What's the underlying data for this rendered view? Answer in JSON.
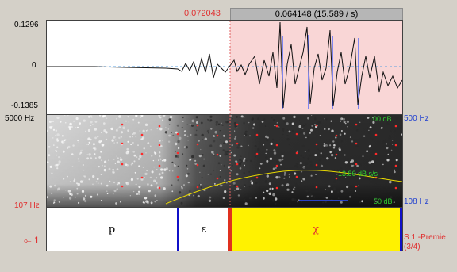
{
  "cursor_time": "0.072043",
  "selection_label": "0.064148 (15.589 / s)",
  "waveform": {
    "y_max": "0.1296",
    "y_zero": "0",
    "y_min": "-0.1385"
  },
  "spectrogram": {
    "freq_top_left": "5000 Hz",
    "freq_bottom_left": "107 Hz",
    "freq_top_right": "500 Hz",
    "freq_bottom_right": "108 Hz",
    "intensity_top": "100 dB",
    "pitch_value": "13.86 dB s/s",
    "intensity_bottom": "50 dB"
  },
  "tier": {
    "index_label": "1",
    "segments": [
      {
        "label": "p"
      },
      {
        "label": "ɛ"
      },
      {
        "label": "χ"
      }
    ],
    "name_line1": "S 1 -Premie",
    "name_line2": "(3/4)"
  },
  "colors": {
    "selection": "#f9d6d6",
    "highlight_segment": "#fff200",
    "boundary": "#1010c8",
    "cursor": "#e0301e"
  }
}
